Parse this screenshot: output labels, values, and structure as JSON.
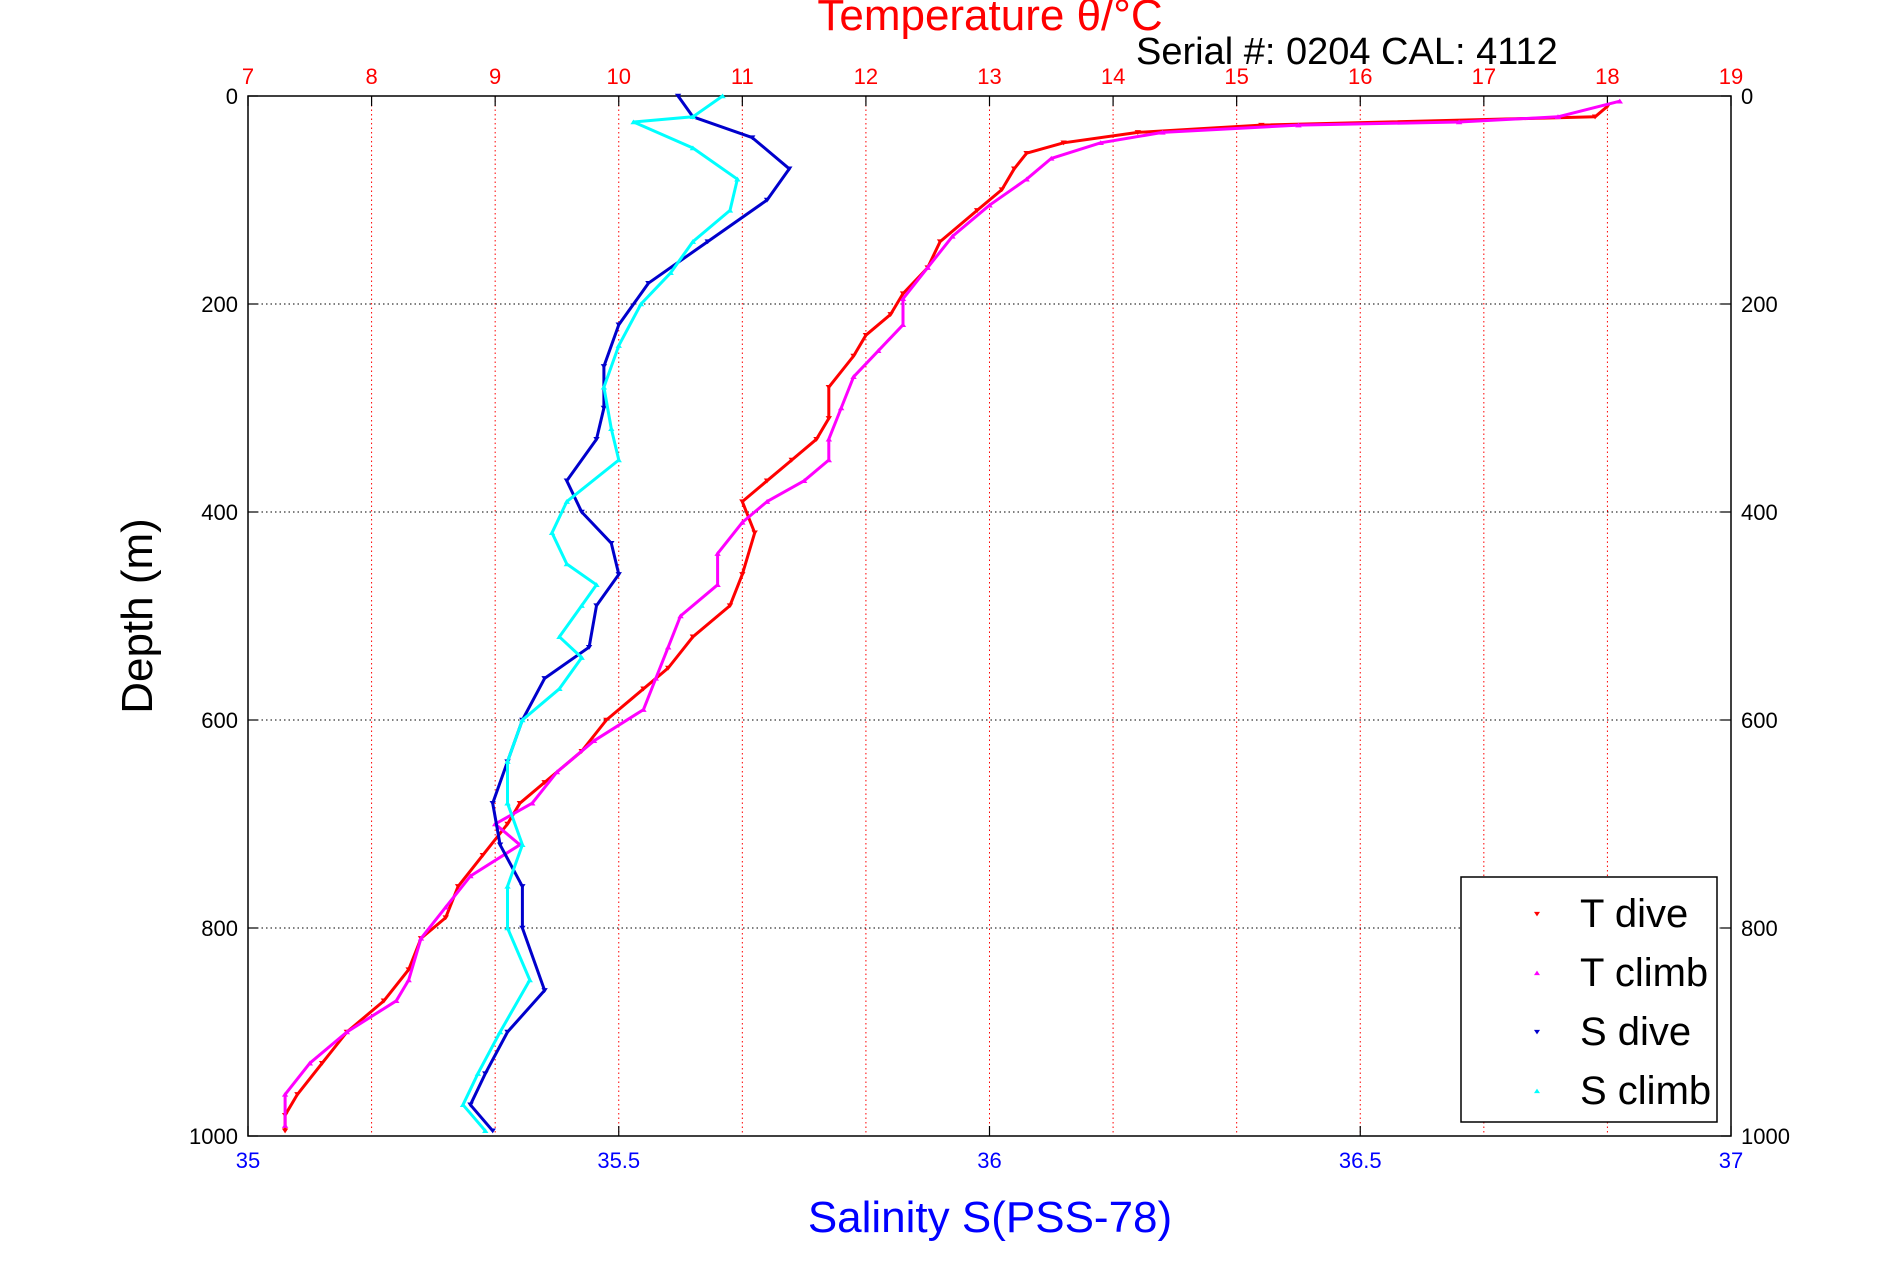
{
  "header": {
    "top_axis_title": "Temperature θ/°C",
    "serial_text": "Serial #: 0204  CAL: 4112"
  },
  "colors": {
    "temperature_axis": "#ff0000",
    "salinity_axis": "#0000ff",
    "t_dive": "#ff0000",
    "t_climb": "#ff00ff",
    "s_dive": "#0000cc",
    "s_climb": "#00ffff",
    "grid": "#000000"
  },
  "chart_data": {
    "type": "scatter",
    "xlabel_bottom": "Salinity S(PSS-78)",
    "xlabel_top": "Temperature θ/°C",
    "ylabel": "Depth (m)",
    "y_reversed": true,
    "ylim": [
      0,
      1000
    ],
    "xlim_bottom": [
      35,
      37
    ],
    "xlim_top": [
      7,
      19
    ],
    "grid": true,
    "legend_position": "bottom-right",
    "bottom_ticks": [
      "35",
      "35.5",
      "36",
      "36.5",
      "37"
    ],
    "top_ticks": [
      "7",
      "8",
      "9",
      "10",
      "11",
      "12",
      "13",
      "14",
      "15",
      "16",
      "17",
      "18",
      "19"
    ],
    "y_ticks": [
      "0",
      "200",
      "400",
      "600",
      "800",
      "1000"
    ],
    "series": [
      {
        "name": "T dive",
        "axis": "temperature",
        "marker": "down-triangle",
        "points": [
          [
            18.0,
            10
          ],
          [
            17.9,
            20
          ],
          [
            15.2,
            28
          ],
          [
            14.2,
            35
          ],
          [
            13.6,
            45
          ],
          [
            13.3,
            55
          ],
          [
            13.2,
            70
          ],
          [
            13.1,
            90
          ],
          [
            12.9,
            110
          ],
          [
            12.6,
            140
          ],
          [
            12.5,
            165
          ],
          [
            12.3,
            190
          ],
          [
            12.2,
            210
          ],
          [
            12.0,
            230
          ],
          [
            11.9,
            250
          ],
          [
            11.7,
            280
          ],
          [
            11.7,
            310
          ],
          [
            11.6,
            330
          ],
          [
            11.4,
            350
          ],
          [
            11.2,
            370
          ],
          [
            11.0,
            390
          ],
          [
            11.1,
            420
          ],
          [
            11.0,
            460
          ],
          [
            10.9,
            490
          ],
          [
            10.6,
            520
          ],
          [
            10.4,
            550
          ],
          [
            10.2,
            570
          ],
          [
            9.9,
            600
          ],
          [
            9.7,
            630
          ],
          [
            9.4,
            660
          ],
          [
            9.2,
            680
          ],
          [
            9.1,
            700
          ],
          [
            8.9,
            730
          ],
          [
            8.7,
            760
          ],
          [
            8.6,
            790
          ],
          [
            8.4,
            810
          ],
          [
            8.3,
            840
          ],
          [
            8.1,
            870
          ],
          [
            7.8,
            900
          ],
          [
            7.6,
            930
          ],
          [
            7.4,
            960
          ],
          [
            7.3,
            980
          ],
          [
            7.3,
            995
          ]
        ]
      },
      {
        "name": "T climb",
        "axis": "temperature",
        "marker": "up-triangle",
        "points": [
          [
            18.1,
            5
          ],
          [
            17.6,
            20
          ],
          [
            16.8,
            25
          ],
          [
            15.5,
            28
          ],
          [
            14.4,
            35
          ],
          [
            13.9,
            45
          ],
          [
            13.5,
            60
          ],
          [
            13.3,
            80
          ],
          [
            13.0,
            105
          ],
          [
            12.7,
            135
          ],
          [
            12.5,
            165
          ],
          [
            12.3,
            195
          ],
          [
            12.3,
            220
          ],
          [
            12.1,
            245
          ],
          [
            11.9,
            270
          ],
          [
            11.8,
            300
          ],
          [
            11.7,
            330
          ],
          [
            11.7,
            350
          ],
          [
            11.5,
            370
          ],
          [
            11.2,
            390
          ],
          [
            11.0,
            410
          ],
          [
            10.8,
            440
          ],
          [
            10.8,
            470
          ],
          [
            10.5,
            500
          ],
          [
            10.4,
            530
          ],
          [
            10.3,
            560
          ],
          [
            10.2,
            590
          ],
          [
            9.8,
            620
          ],
          [
            9.5,
            650
          ],
          [
            9.3,
            680
          ],
          [
            9.0,
            700
          ],
          [
            9.2,
            720
          ],
          [
            8.8,
            750
          ],
          [
            8.6,
            780
          ],
          [
            8.4,
            810
          ],
          [
            8.3,
            850
          ],
          [
            8.2,
            870
          ],
          [
            7.8,
            900
          ],
          [
            7.5,
            930
          ],
          [
            7.3,
            960
          ],
          [
            7.3,
            990
          ]
        ]
      },
      {
        "name": "S dive",
        "axis": "salinity",
        "marker": "down-triangle",
        "points": [
          [
            35.58,
            0
          ],
          [
            35.6,
            20
          ],
          [
            35.68,
            40
          ],
          [
            35.73,
            70
          ],
          [
            35.7,
            100
          ],
          [
            35.62,
            140
          ],
          [
            35.54,
            180
          ],
          [
            35.5,
            220
          ],
          [
            35.48,
            260
          ],
          [
            35.48,
            300
          ],
          [
            35.47,
            330
          ],
          [
            35.43,
            370
          ],
          [
            35.45,
            400
          ],
          [
            35.49,
            430
          ],
          [
            35.5,
            460
          ],
          [
            35.47,
            490
          ],
          [
            35.46,
            530
          ],
          [
            35.4,
            560
          ],
          [
            35.37,
            600
          ],
          [
            35.35,
            640
          ],
          [
            35.33,
            680
          ],
          [
            35.34,
            720
          ],
          [
            35.37,
            760
          ],
          [
            35.37,
            800
          ],
          [
            35.4,
            860
          ],
          [
            35.35,
            900
          ],
          [
            35.32,
            940
          ],
          [
            35.3,
            970
          ],
          [
            35.33,
            995
          ]
        ]
      },
      {
        "name": "S climb",
        "axis": "salinity",
        "marker": "up-triangle",
        "points": [
          [
            35.64,
            0
          ],
          [
            35.6,
            20
          ],
          [
            35.52,
            25
          ],
          [
            35.6,
            50
          ],
          [
            35.66,
            80
          ],
          [
            35.65,
            110
          ],
          [
            35.6,
            140
          ],
          [
            35.57,
            170
          ],
          [
            35.53,
            200
          ],
          [
            35.5,
            240
          ],
          [
            35.48,
            280
          ],
          [
            35.49,
            320
          ],
          [
            35.5,
            350
          ],
          [
            35.43,
            390
          ],
          [
            35.41,
            420
          ],
          [
            35.43,
            450
          ],
          [
            35.47,
            470
          ],
          [
            35.45,
            490
          ],
          [
            35.42,
            520
          ],
          [
            35.45,
            540
          ],
          [
            35.42,
            570
          ],
          [
            35.37,
            600
          ],
          [
            35.35,
            640
          ],
          [
            35.35,
            680
          ],
          [
            35.37,
            720
          ],
          [
            35.35,
            760
          ],
          [
            35.35,
            800
          ],
          [
            35.38,
            850
          ],
          [
            35.34,
            900
          ],
          [
            35.31,
            940
          ],
          [
            35.29,
            970
          ],
          [
            35.32,
            995
          ]
        ]
      }
    ]
  }
}
